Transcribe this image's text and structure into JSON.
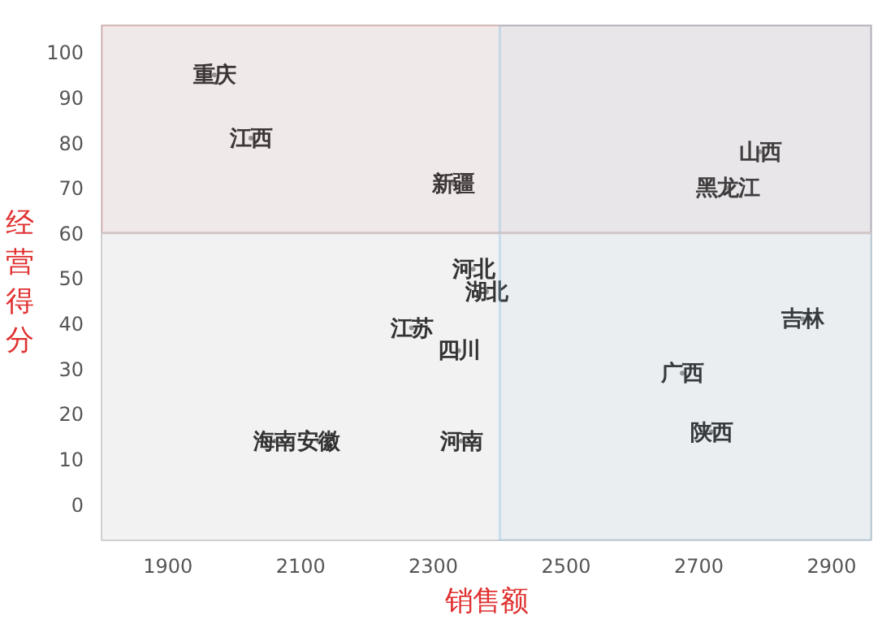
{
  "chart_data": {
    "type": "scatter",
    "xlabel": "销售额",
    "ylabel": "经营得分",
    "marker": "none",
    "grid": false,
    "x": [
      1970,
      2025,
      2330,
      2792,
      2743,
      2360,
      2380,
      2267,
      2338,
      2856,
      2675,
      2719,
      2061,
      2127,
      2342
    ],
    "values": [
      95,
      81,
      71,
      78,
      70,
      52,
      47,
      39,
      34,
      41,
      29,
      16,
      14,
      14,
      14
    ],
    "value_labels": [
      "重庆",
      "江西",
      "新疆",
      "山西",
      "黑龙江",
      "河北",
      "湖北",
      "江苏",
      "四川",
      "吉林",
      "广西",
      "陕西",
      "海南",
      "安徽",
      "河南"
    ],
    "xlim": [
      1800,
      2960
    ],
    "ylim": [
      -8,
      106
    ],
    "xticks": [
      1900,
      2100,
      2300,
      2500,
      2700,
      2900
    ],
    "yticks": [
      0,
      10,
      20,
      30,
      40,
      50,
      60,
      70,
      80,
      90,
      100
    ],
    "ref_lines": [
      {
        "axis": "y",
        "value": 60,
        "color": "#c8c8c8"
      }
    ],
    "bands": [
      {
        "axis": "y",
        "from": 60,
        "to": 106,
        "color": "#e06666"
      },
      {
        "axis": "x",
        "from": 2400,
        "to": 2960,
        "color": "#6fb3e0"
      }
    ]
  }
}
